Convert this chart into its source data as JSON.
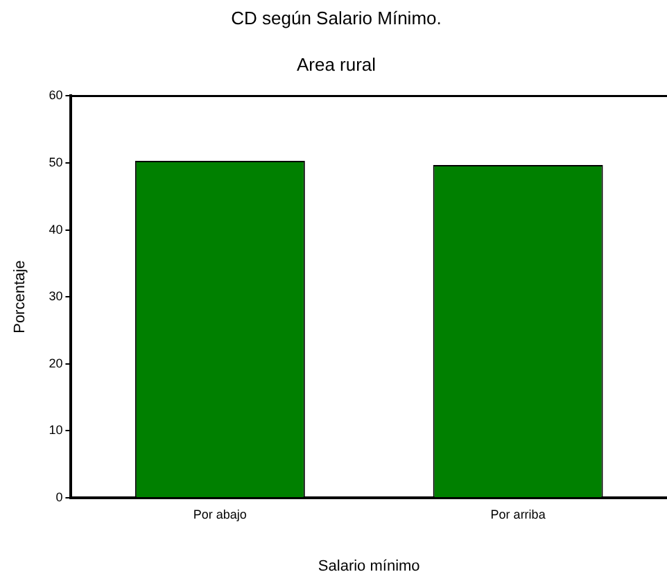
{
  "chart_data": {
    "type": "bar",
    "title": "CD según Salario Mínimo.",
    "subtitle": "Area rural",
    "xlabel": "Salario mínimo",
    "ylabel": "Porcentaje",
    "categories": [
      "Por abajo",
      "Por arriba"
    ],
    "values": [
      50.3,
      49.7
    ],
    "color": "#008000",
    "ylim": [
      0,
      60
    ],
    "yticks": [
      0,
      10,
      20,
      30,
      40,
      50,
      60
    ],
    "grid": false,
    "legend": false
  }
}
